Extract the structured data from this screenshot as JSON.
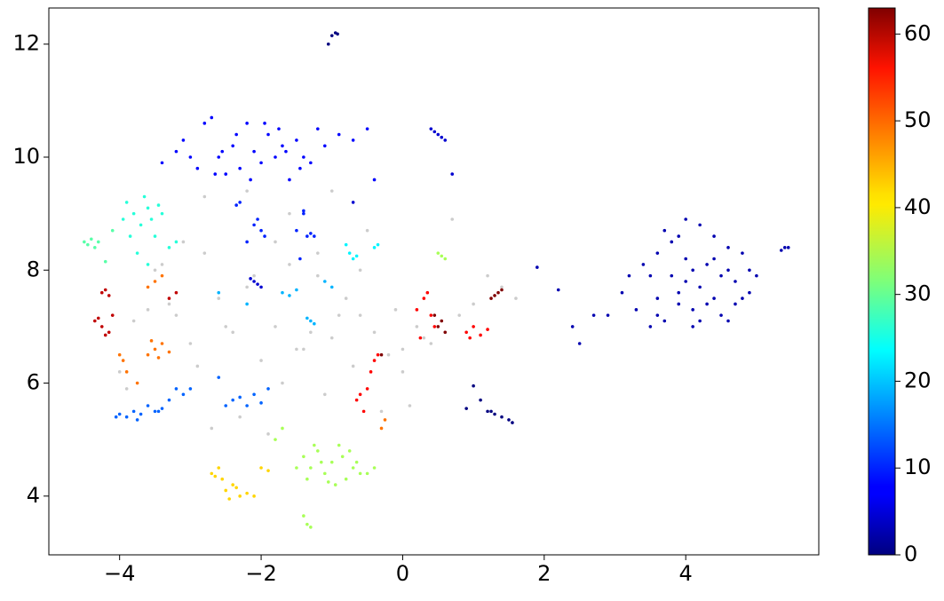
{
  "chart_data": {
    "type": "scatter",
    "xlim": [
      -5.0,
      5.88
    ],
    "ylim": [
      2.96,
      12.64
    ],
    "xticks": [
      {
        "value": -4,
        "label": "−4"
      },
      {
        "value": -2,
        "label": "−2"
      },
      0,
      2,
      4
    ],
    "yticks": [
      4,
      6,
      8,
      10,
      12
    ],
    "colormap": "jet",
    "colorbar": {
      "lim": [
        0,
        63
      ],
      "ticks": [
        0,
        10,
        20,
        30,
        40,
        50,
        60
      ]
    },
    "series": [
      {
        "color": "#cccccc",
        "x": [
          -4.0,
          -3.8,
          -3.5,
          -3.2,
          -3.0,
          -2.8,
          -2.6,
          -2.4,
          -2.2,
          -2.0,
          -1.8,
          -1.6,
          -1.4,
          -1.2,
          -1.0,
          -0.8,
          -0.6,
          -0.4,
          -0.2,
          0.0,
          0.2,
          0.4,
          0.6,
          0.8,
          1.0,
          1.2,
          1.4,
          1.6,
          -3.9,
          -3.3,
          -2.9,
          -2.5,
          -2.1,
          -1.7,
          -1.3,
          -0.9,
          -0.5,
          -0.1,
          0.3,
          0.7,
          -3.6,
          -3.1,
          -2.7,
          -2.3,
          -1.9,
          -1.5,
          -1.1,
          -0.7,
          -0.3,
          0.1,
          -2.8,
          -2.2,
          -1.6,
          -1.0,
          -0.4,
          -3.4,
          -1.8,
          -1.2,
          -0.6,
          0.0
        ],
        "y": [
          6.2,
          7.1,
          8.0,
          7.2,
          6.7,
          8.3,
          7.5,
          6.9,
          7.7,
          6.4,
          7.0,
          8.1,
          6.6,
          7.9,
          6.8,
          7.5,
          7.2,
          6.9,
          6.5,
          6.6,
          7.0,
          6.7,
          6.9,
          7.2,
          7.4,
          7.9,
          7.7,
          7.5,
          5.9,
          7.4,
          6.3,
          7.0,
          7.9,
          6.0,
          6.9,
          7.2,
          8.7,
          7.3,
          6.8,
          8.9,
          7.3,
          8.5,
          5.2,
          5.4,
          5.1,
          6.6,
          5.8,
          6.3,
          5.5,
          5.6,
          9.3,
          9.4,
          9.0,
          9.4,
          9.6,
          8.1,
          8.5,
          8.3,
          8.0,
          6.2
        ]
      },
      {
        "c": 3,
        "x": [
          3.3,
          3.5,
          3.6,
          3.7,
          3.8,
          3.9,
          4.0,
          4.1,
          4.2,
          4.3,
          4.4,
          4.5,
          4.6,
          4.7,
          4.8,
          4.9,
          5.0,
          3.4,
          3.6,
          3.8,
          4.0,
          4.2,
          4.4,
          4.6,
          4.8,
          3.5,
          3.7,
          3.9,
          4.1,
          4.3,
          4.5,
          4.7,
          4.9,
          4.0,
          4.2,
          3.6,
          4.4,
          4.1,
          3.9,
          4.6
        ],
        "y": [
          7.3,
          7.9,
          8.3,
          7.1,
          8.5,
          7.6,
          8.9,
          7.0,
          8.8,
          7.4,
          8.2,
          7.2,
          8.4,
          7.8,
          7.5,
          8.0,
          7.9,
          8.1,
          7.5,
          7.9,
          8.2,
          7.7,
          7.5,
          8.0,
          8.3,
          7.0,
          8.7,
          8.6,
          7.3,
          8.1,
          7.9,
          7.4,
          7.6,
          7.8,
          7.1,
          7.2,
          8.6,
          8.0,
          7.4,
          7.1
        ]
      },
      {
        "c": 3,
        "x": [
          2.2,
          2.4,
          2.5,
          2.7,
          2.9,
          3.1,
          3.2,
          5.35,
          5.4,
          5.45,
          1.9
        ],
        "y": [
          7.65,
          7.0,
          6.7,
          7.2,
          7.2,
          7.6,
          7.9,
          8.35,
          8.4,
          8.4,
          8.05
        ]
      },
      {
        "c": 0,
        "x": [
          -1.0,
          -0.95,
          -0.92,
          -1.05,
          1.0,
          1.1,
          1.2,
          1.3,
          1.4,
          1.5,
          1.55,
          1.25,
          0.9
        ],
        "y": [
          12.15,
          12.2,
          12.18,
          12.0,
          5.95,
          5.7,
          5.5,
          5.45,
          5.4,
          5.35,
          5.3,
          5.5,
          5.55
        ]
      },
      {
        "c": 8,
        "x": [
          -3.2,
          -3.1,
          -3.0,
          -2.9,
          -2.7,
          -2.6,
          -2.5,
          -2.4,
          -2.3,
          -2.2,
          -2.1,
          -2.0,
          -1.9,
          -1.8,
          -1.7,
          -1.6,
          -1.5,
          -1.4,
          -1.3,
          -1.2,
          -1.1,
          -0.9,
          -0.7,
          -0.5,
          -3.4,
          -2.8,
          -2.65,
          -2.35,
          -1.95,
          -1.75,
          -1.45,
          -2.55,
          -2.15,
          -1.65,
          -0.4
        ],
        "y": [
          10.1,
          10.3,
          10.0,
          9.8,
          10.7,
          10.0,
          9.7,
          10.2,
          9.8,
          10.6,
          10.1,
          9.9,
          10.4,
          10.0,
          10.2,
          9.6,
          10.3,
          10.0,
          9.9,
          10.5,
          10.2,
          10.4,
          10.3,
          10.5,
          9.9,
          10.6,
          9.7,
          10.4,
          10.6,
          10.5,
          9.8,
          10.1,
          9.6,
          10.1,
          9.6
        ]
      },
      {
        "c": 5,
        "x": [
          0.45,
          0.5,
          0.55,
          0.4,
          0.6,
          0.7,
          -2.1,
          -2.05,
          -2.15,
          -2.0,
          -0.7
        ],
        "y": [
          10.45,
          10.4,
          10.35,
          10.5,
          10.3,
          9.7,
          7.8,
          7.75,
          7.85,
          7.7,
          9.2
        ]
      },
      {
        "c": 10,
        "x": [
          -2.0,
          -2.1,
          -1.95,
          -2.05,
          -2.2,
          -1.4,
          -1.35,
          -1.5,
          -1.3,
          -1.45,
          -1.4,
          -1.25,
          -2.3,
          -2.35
        ],
        "y": [
          8.7,
          8.8,
          8.6,
          8.9,
          8.5,
          9.0,
          8.6,
          8.7,
          8.65,
          8.2,
          9.05,
          8.6,
          9.2,
          9.15
        ]
      },
      {
        "c": 14,
        "x": [
          -4.0,
          -3.9,
          -3.8,
          -3.7,
          -3.6,
          -3.5,
          -3.4,
          -3.3,
          -3.2,
          -3.1,
          -3.0,
          -4.05,
          -3.75,
          -3.45,
          -2.4,
          -2.3,
          -2.2,
          -2.1,
          -2.0,
          -1.9,
          -2.5,
          -2.6
        ],
        "y": [
          5.45,
          5.4,
          5.5,
          5.45,
          5.6,
          5.5,
          5.55,
          5.7,
          5.9,
          5.8,
          5.9,
          5.4,
          5.35,
          5.5,
          5.7,
          5.75,
          5.6,
          5.8,
          5.65,
          5.9,
          5.6,
          6.1
        ]
      },
      {
        "c": 19,
        "x": [
          -1.7,
          -1.6,
          -1.5,
          -1.3,
          -1.25,
          -1.35,
          -1.1,
          -1.0,
          -2.6,
          -2.2
        ],
        "y": [
          7.6,
          7.55,
          7.65,
          7.1,
          7.05,
          7.15,
          7.8,
          7.7,
          7.6,
          7.4
        ]
      },
      {
        "c": 23,
        "x": [
          -0.8,
          -0.75,
          -0.7,
          -0.65,
          -0.4,
          -0.35
        ],
        "y": [
          8.45,
          8.3,
          8.2,
          8.25,
          8.4,
          8.45
        ]
      },
      {
        "c": 26,
        "x": [
          -3.9,
          -3.8,
          -3.7,
          -3.6,
          -3.5,
          -3.4,
          -3.3,
          -3.85,
          -3.75,
          -3.65,
          -3.55,
          -3.45,
          -3.2,
          -3.95,
          -3.6
        ],
        "y": [
          9.2,
          9.0,
          8.8,
          9.1,
          8.6,
          9.0,
          8.4,
          8.6,
          8.3,
          9.3,
          8.9,
          9.15,
          8.5,
          8.9,
          8.1
        ]
      },
      {
        "c": 29,
        "x": [
          -4.5,
          -4.45,
          -4.4,
          -4.35,
          -4.3,
          -4.1,
          -4.2
        ],
        "y": [
          8.5,
          8.45,
          8.55,
          8.4,
          8.5,
          8.7,
          8.15
        ]
      },
      {
        "c": 34,
        "x": [
          -1.4,
          -1.3,
          -1.2,
          -1.1,
          -1.0,
          -0.9,
          -0.8,
          -0.7,
          -0.6,
          -0.5,
          -0.4,
          -1.5,
          -1.25,
          -1.05,
          -0.85,
          -0.65,
          -1.35,
          -1.15,
          -0.95,
          -0.75,
          -1.3,
          -1.35,
          -1.4,
          0.5,
          0.55,
          0.6,
          -1.7,
          -1.8
        ],
        "y": [
          4.7,
          4.5,
          4.8,
          4.4,
          4.6,
          4.9,
          4.3,
          4.5,
          4.4,
          4.4,
          4.5,
          4.5,
          4.9,
          4.25,
          4.7,
          4.6,
          4.3,
          4.6,
          4.2,
          4.8,
          3.45,
          3.5,
          3.65,
          8.3,
          8.25,
          8.2,
          5.2,
          5.0
        ]
      },
      {
        "c": 42,
        "x": [
          -2.7,
          -2.6,
          -2.5,
          -2.4,
          -2.3,
          -2.2,
          -2.55,
          -2.45,
          -2.35,
          -2.65,
          -2.0,
          -1.9,
          -2.1
        ],
        "y": [
          4.4,
          4.5,
          4.1,
          4.2,
          4.0,
          4.05,
          4.3,
          3.95,
          4.15,
          4.35,
          4.5,
          4.45,
          4.0
        ]
      },
      {
        "c": 48,
        "x": [
          -3.6,
          -3.5,
          -3.4,
          -3.3,
          -3.45,
          -3.55,
          -3.95,
          -4.0,
          -3.9,
          -3.5,
          -3.6,
          -3.4,
          -3.75,
          -0.3,
          -0.25
        ],
        "y": [
          6.5,
          6.6,
          6.7,
          6.55,
          6.45,
          6.75,
          6.4,
          6.5,
          6.2,
          7.8,
          7.7,
          7.9,
          6.0,
          5.2,
          5.35
        ]
      },
      {
        "c": 55,
        "x": [
          -0.6,
          -0.5,
          -0.45,
          -0.55,
          -0.65,
          -0.4,
          -0.35,
          0.2,
          0.3,
          0.4,
          0.35,
          0.45,
          0.25,
          0.9,
          1.0,
          1.1,
          1.2,
          0.95
        ],
        "y": [
          5.8,
          5.9,
          6.2,
          5.5,
          5.7,
          6.4,
          6.5,
          7.3,
          7.5,
          7.2,
          7.6,
          7.0,
          6.8,
          6.9,
          7.0,
          6.85,
          6.95,
          6.8
        ]
      },
      {
        "c": 59,
        "x": [
          -4.25,
          -4.2,
          -4.15,
          -4.3,
          -4.1,
          -4.35,
          -4.25,
          -4.2,
          -4.15,
          -3.3,
          -3.2
        ],
        "y": [
          7.6,
          7.65,
          7.55,
          7.15,
          7.2,
          7.1,
          7.0,
          6.85,
          6.9,
          7.5,
          7.6
        ]
      },
      {
        "c": 63,
        "x": [
          1.3,
          1.35,
          1.4,
          1.25,
          0.55,
          0.5,
          0.6,
          0.45,
          -0.3
        ],
        "y": [
          7.55,
          7.6,
          7.65,
          7.5,
          7.1,
          7.0,
          6.9,
          7.2,
          6.5
        ]
      }
    ]
  }
}
